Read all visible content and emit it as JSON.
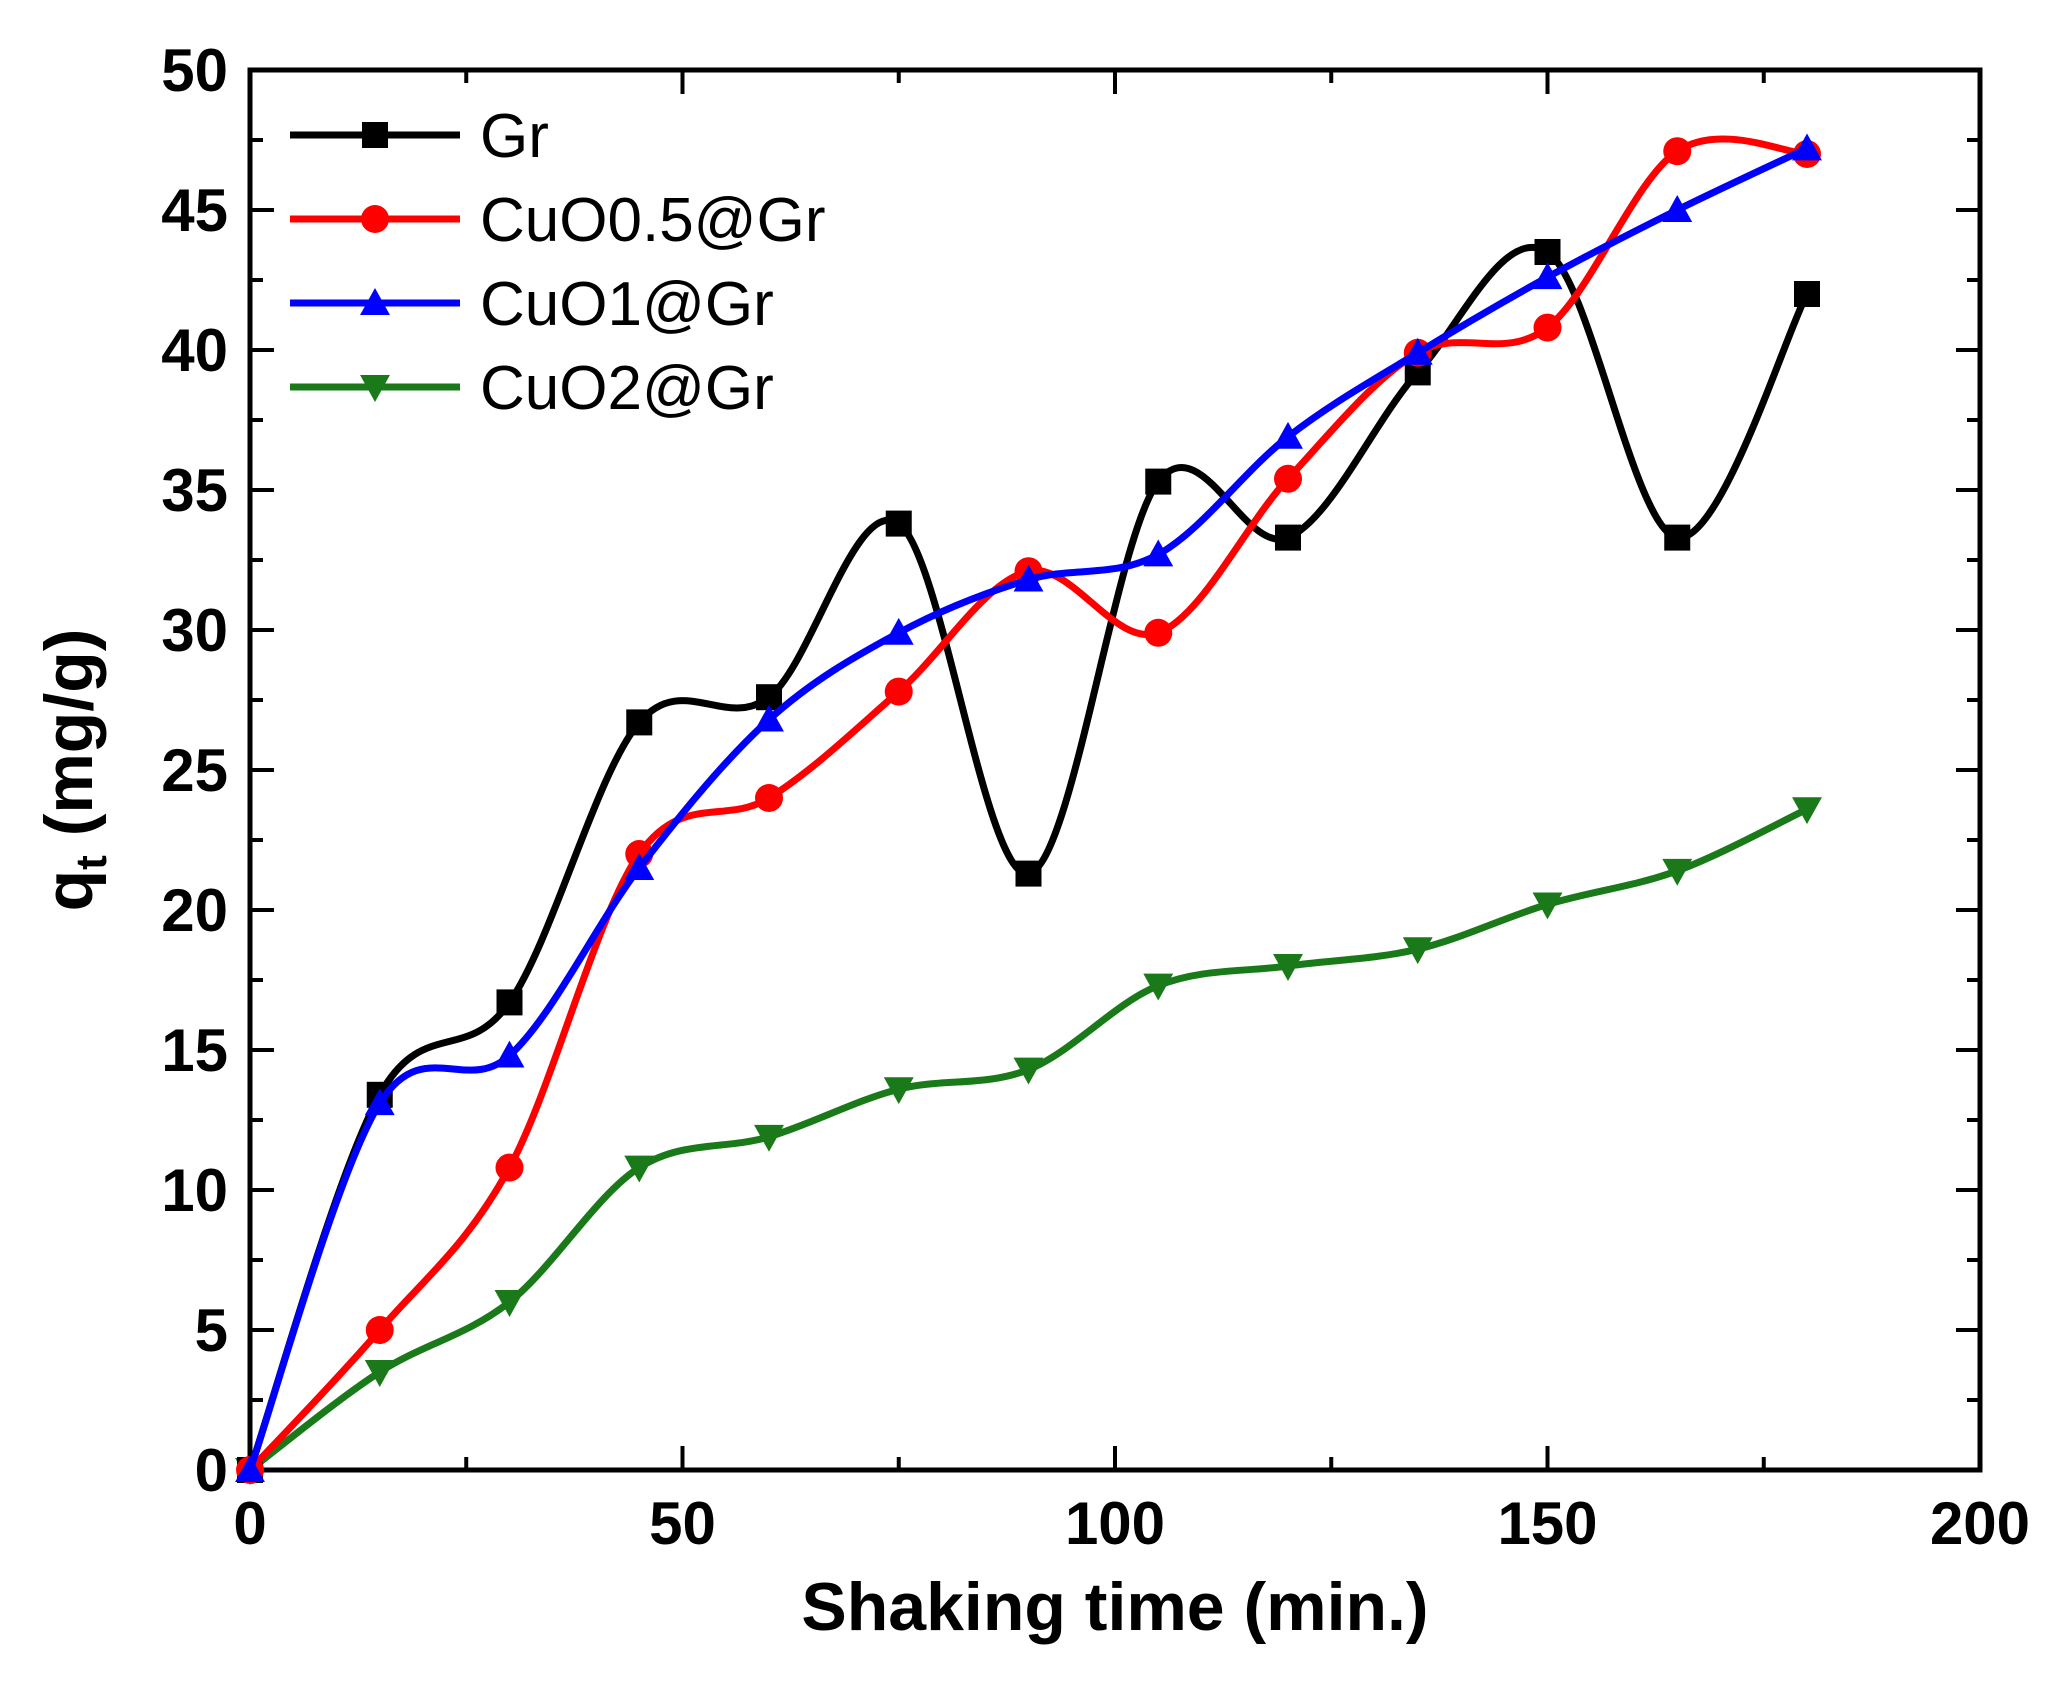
{
  "chart_data": {
    "type": "line",
    "title": "",
    "xlabel": "Shaking time (min.)",
    "ylabel_main": "q",
    "ylabel_sub": "t",
    "ylabel_unit": " (mg/g)",
    "xlim": [
      0,
      200
    ],
    "ylim": [
      0,
      50
    ],
    "xticks": [
      0,
      50,
      100,
      150,
      200
    ],
    "yticks": [
      0,
      5,
      10,
      15,
      20,
      25,
      30,
      35,
      40,
      45,
      50
    ],
    "legend_position": "top-left",
    "grid": false,
    "x": [
      0,
      15,
      30,
      45,
      60,
      75,
      90,
      105,
      120,
      135,
      150,
      165,
      180
    ],
    "series": [
      {
        "name": "Gr",
        "color": "#000000",
        "marker": "square",
        "values": [
          0,
          13.4,
          16.7,
          26.7,
          27.6,
          33.8,
          21.3,
          35.3,
          33.3,
          39.2,
          43.5,
          33.3,
          42.0
        ]
      },
      {
        "name": "CuO0.5@Gr",
        "color": "#ff0000",
        "marker": "circle",
        "values": [
          0,
          5.0,
          10.8,
          22.0,
          24.0,
          27.8,
          32.1,
          29.9,
          35.4,
          39.9,
          40.8,
          47.1,
          47.0
        ]
      },
      {
        "name": "CuO1@Gr",
        "color": "#0000ff",
        "marker": "triangle-up",
        "values": [
          0,
          13.1,
          14.8,
          21.5,
          26.8,
          29.9,
          31.8,
          32.7,
          36.9,
          39.9,
          42.6,
          45.0,
          47.2
        ]
      },
      {
        "name": "CuO2@Gr",
        "color": "#1a7a1a",
        "marker": "triangle-down",
        "values": [
          0,
          3.5,
          6.0,
          10.8,
          11.9,
          13.6,
          14.3,
          17.3,
          18.0,
          18.6,
          20.2,
          21.4,
          23.6
        ]
      }
    ]
  }
}
